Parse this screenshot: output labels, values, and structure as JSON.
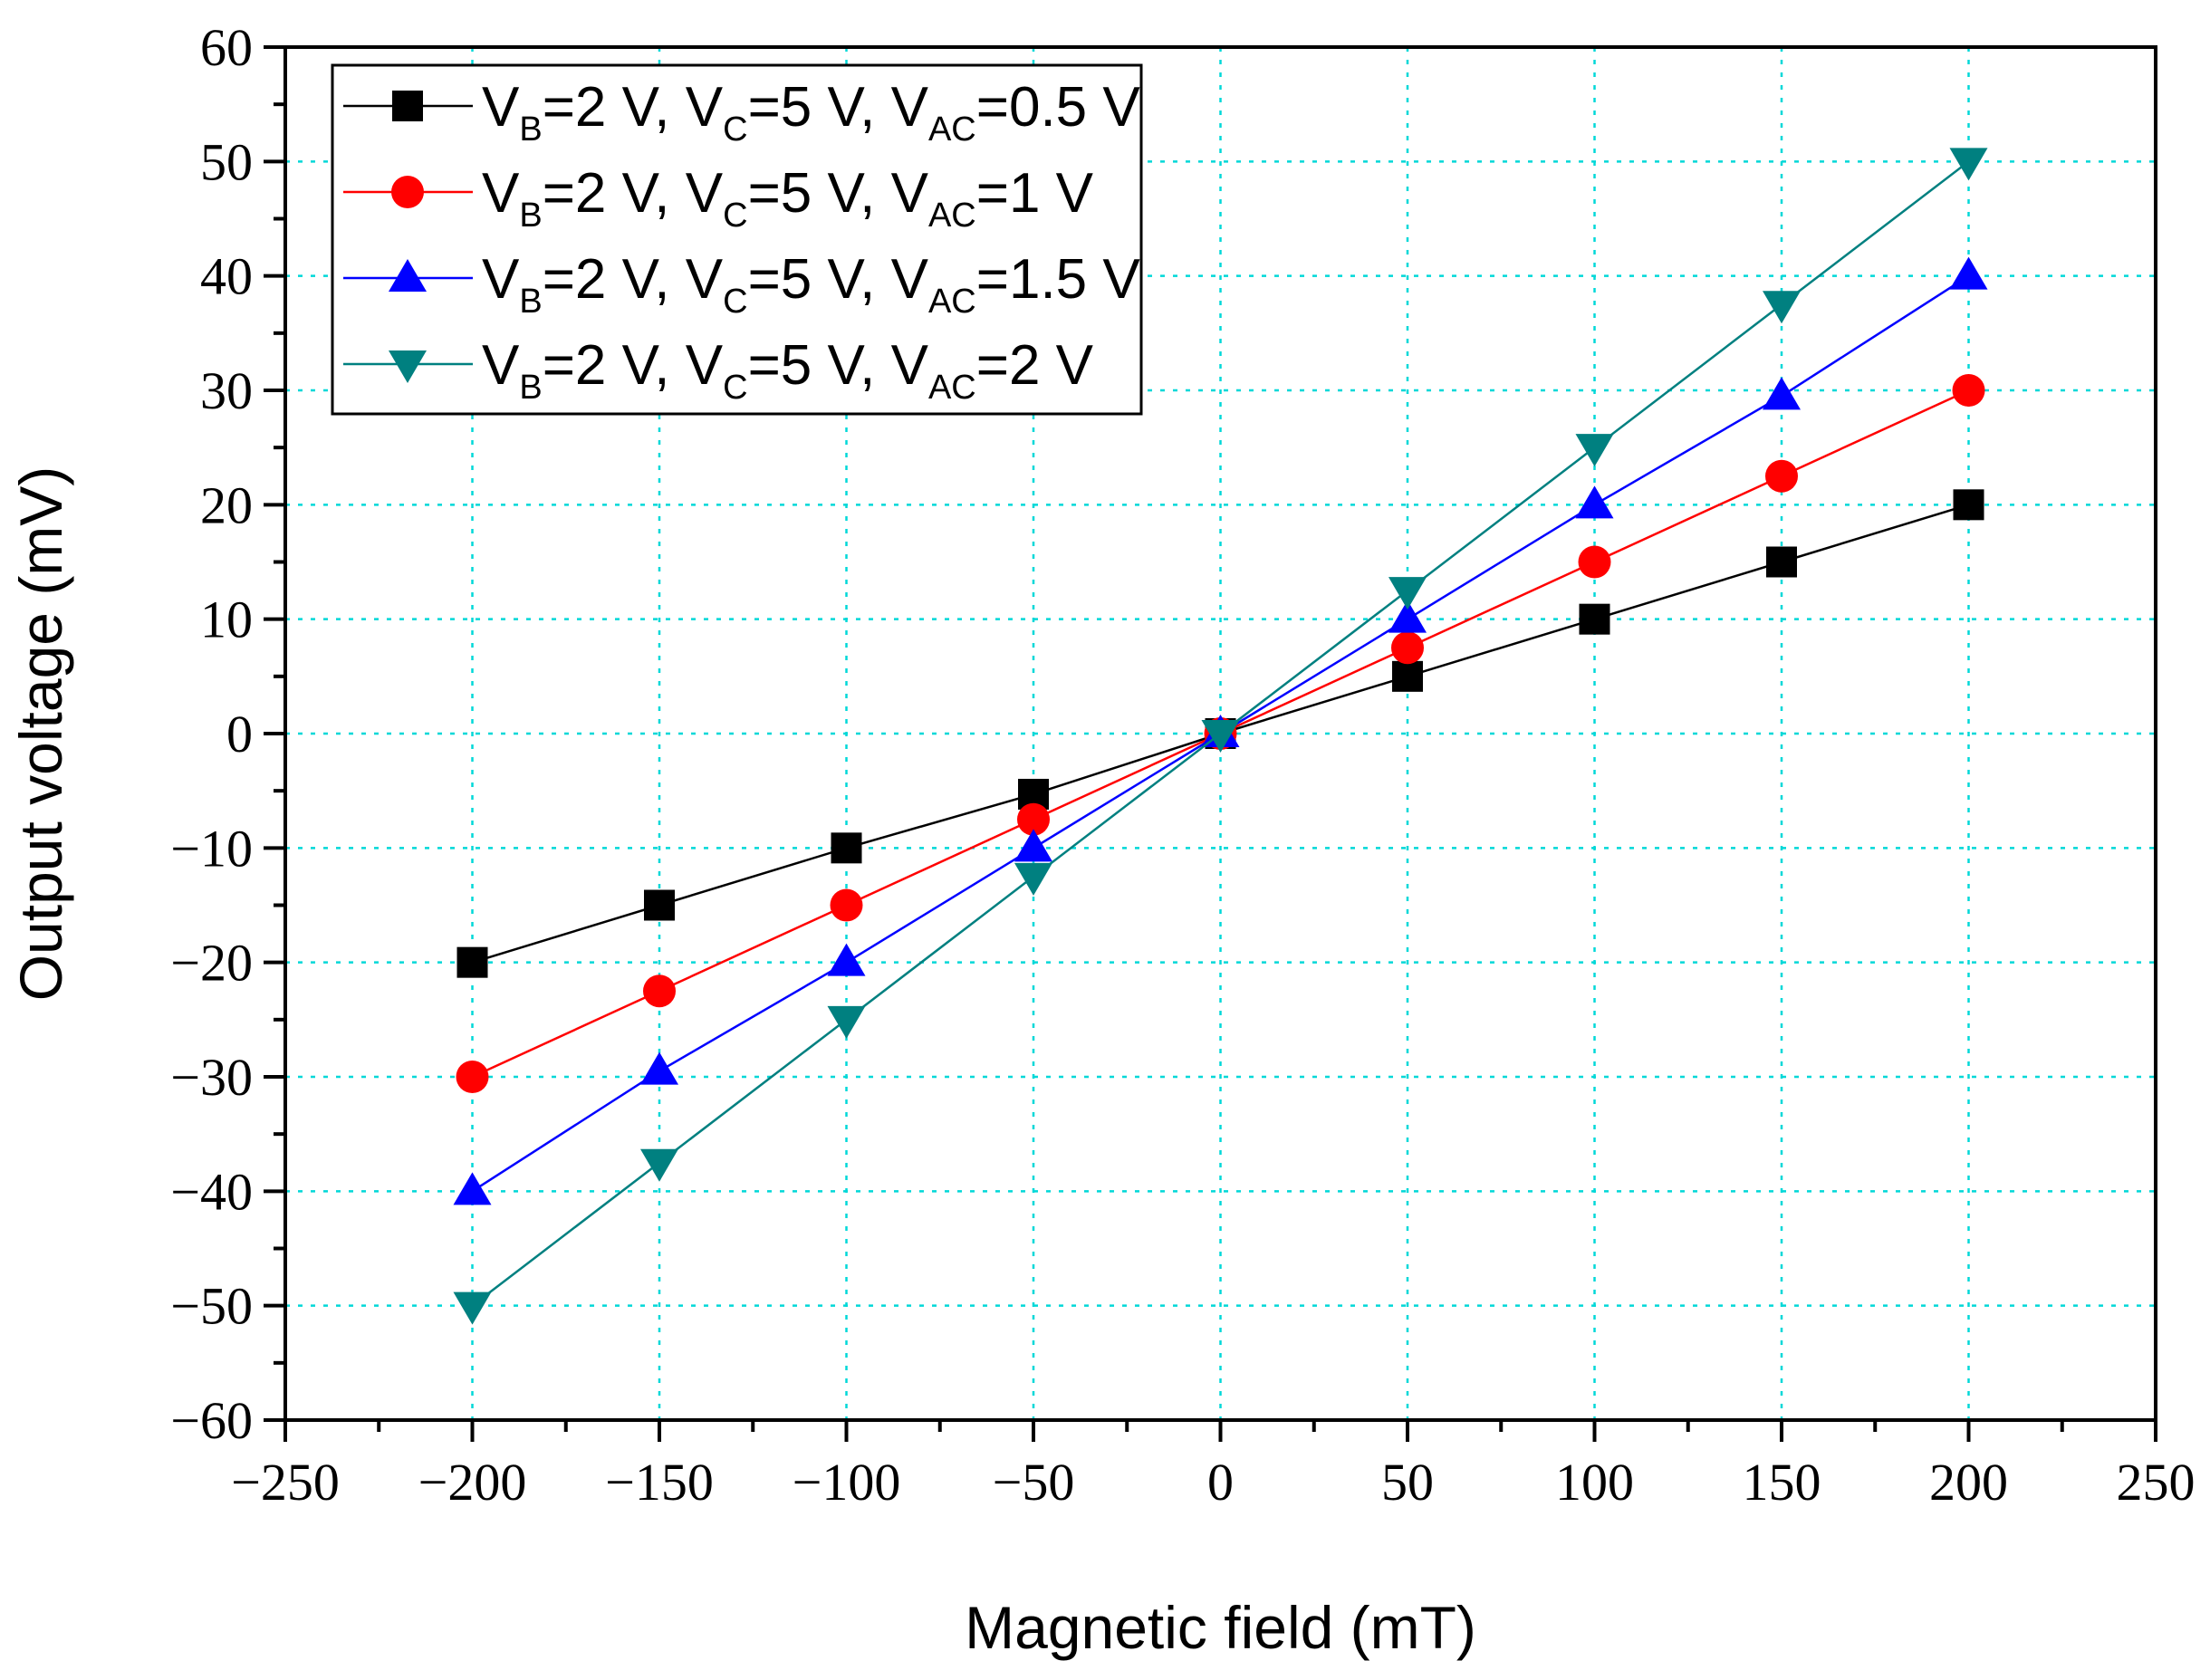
{
  "chart_data": {
    "type": "line",
    "xlabel": "Magnetic field (mT)",
    "ylabel": "Output voltage (mV)",
    "xlim": [
      -250,
      250
    ],
    "ylim": [
      -60,
      60
    ],
    "x_ticks": [
      -250,
      -200,
      -150,
      -100,
      -50,
      0,
      50,
      100,
      150,
      200,
      250
    ],
    "x_tick_labels": [
      "−250",
      "−200",
      "−150",
      "−100",
      "−50",
      "0",
      "50",
      "100",
      "150",
      "200",
      "250"
    ],
    "y_ticks": [
      -60,
      -50,
      -40,
      -30,
      -20,
      -10,
      0,
      10,
      20,
      30,
      40,
      50,
      60
    ],
    "y_tick_labels": [
      "−60",
      "−50",
      "−40",
      "−30",
      "−20",
      "−10",
      "0",
      "10",
      "20",
      "30",
      "40",
      "50",
      "60"
    ],
    "grid": true,
    "legend_position": "top-left",
    "x": [
      -200,
      -150,
      -100,
      -50,
      0,
      50,
      100,
      150,
      200
    ],
    "series": [
      {
        "name": "V_B=2 V, V_C=5 V, V_AC=0.5 V",
        "legend": [
          "V",
          "B",
          "=2 V, V",
          "C",
          "=5 V, V",
          "AC",
          "=0.5 V"
        ],
        "marker": "square",
        "color": "#000000",
        "values": [
          -20,
          -15,
          -10,
          -5.3,
          0,
          5,
          10,
          15,
          20
        ]
      },
      {
        "name": "V_B=2 V, V_C=5 V, V_AC=1 V",
        "legend": [
          "V",
          "B",
          "=2 V, V",
          "C",
          "=5 V, V",
          "AC",
          "=1 V"
        ],
        "marker": "circle",
        "color": "#ff0000",
        "values": [
          -30,
          -22.5,
          -15,
          -7.5,
          0,
          7.5,
          15,
          22.5,
          30
        ]
      },
      {
        "name": "V_B=2 V, V_C=5 V, V_AC=1.5 V",
        "legend": [
          "V",
          "B",
          "=2 V, V",
          "C",
          "=5 V, V",
          "AC",
          "=1.5 V"
        ],
        "marker": "triangle-up",
        "color": "#0000ff",
        "values": [
          -40,
          -29.5,
          -20,
          -10,
          0,
          10,
          20,
          29.5,
          40
        ]
      },
      {
        "name": "V_B=2 V, V_C=5 V, V_AC=2 V",
        "legend": [
          "V",
          "B",
          "=2 V, V",
          "C",
          "=5 V, V",
          "AC",
          "=2 V"
        ],
        "marker": "triangle-down",
        "color": "#008080",
        "values": [
          -50,
          -37.5,
          -25,
          -12.5,
          0,
          12.5,
          25,
          37.5,
          50
        ]
      }
    ],
    "grid_color": "#00d8d8"
  }
}
